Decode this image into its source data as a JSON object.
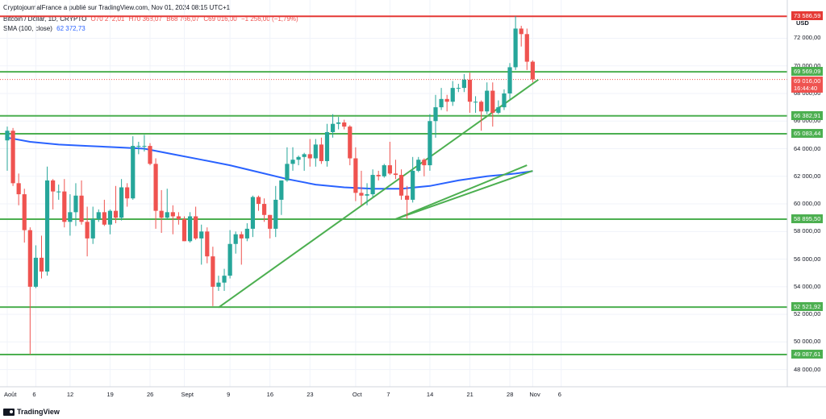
{
  "header": {
    "published": "CryptojournalFrance a publié sur TradingView.com, Nov 01, 2024 08:15 UTC+1",
    "symbol": "Bitcoin / Dollar, 1D, CRYPTO",
    "o": "O70 272,01",
    "h": "H70 368,07",
    "l": "B68 766,07",
    "c": "C69 016,00",
    "chg": "−1 256,00 (−1,79%)",
    "sma_label": "SMA (100, close)",
    "sma_value": "62 372,73"
  },
  "currency": "USD",
  "colors": {
    "up": "#26a69a",
    "down": "#ef5350",
    "sma": "#2962ff",
    "level": "#4caf50",
    "trend": "#4caf50",
    "top": "#e53935"
  },
  "footer": {
    "brand": "TradingView"
  },
  "price_labels": {
    "last_price": "69 016,00",
    "countdown": "16:44:40"
  },
  "chart_data": {
    "type": "candlestick",
    "title": "Bitcoin / Dollar, 1D, CRYPTO",
    "ylim": [
      47000,
      73800
    ],
    "y_ticks": [
      48000,
      50000,
      52000,
      54000,
      56000,
      58000,
      60000,
      62000,
      64000,
      66000,
      68000,
      70000,
      72000
    ],
    "y_tick_labels": [
      "48 000,00",
      "50 000,00",
      "52 000,00",
      "54 000,00",
      "56 000,00",
      "58 000,00",
      "60 000,00",
      "62 000,00",
      "64 000,00",
      "66 000,00",
      "68 000,00",
      "70 000,00",
      "72 000,00"
    ],
    "x_start": "2024-08-01",
    "x_ticks": [
      {
        "date": "2024-08-01",
        "label": "Août"
      },
      {
        "date": "2024-08-06",
        "label": "6"
      },
      {
        "date": "2024-08-12",
        "label": "12"
      },
      {
        "date": "2024-08-19",
        "label": "19"
      },
      {
        "date": "2024-08-26",
        "label": "26"
      },
      {
        "date": "2024-09-01",
        "label": "Sept"
      },
      {
        "date": "2024-09-09",
        "label": "9"
      },
      {
        "date": "2024-09-16",
        "label": "16"
      },
      {
        "date": "2024-09-23",
        "label": "23"
      },
      {
        "date": "2024-10-01",
        "label": "Oct"
      },
      {
        "date": "2024-10-07",
        "label": "7"
      },
      {
        "date": "2024-10-14",
        "label": "14"
      },
      {
        "date": "2024-10-21",
        "label": "21"
      },
      {
        "date": "2024-10-28",
        "label": "28"
      },
      {
        "date": "2024-11-01",
        "label": "Nov"
      },
      {
        "date": "2024-11-06",
        "label": "6"
      }
    ],
    "candles": [
      {
        "date": "2024-08-01",
        "o": 64600,
        "h": 65600,
        "l": 62400,
        "c": 65300
      },
      {
        "date": "2024-08-02",
        "o": 65300,
        "h": 65500,
        "l": 61300,
        "c": 61500
      },
      {
        "date": "2024-08-03",
        "o": 61500,
        "h": 62200,
        "l": 59900,
        "c": 60700
      },
      {
        "date": "2024-08-04",
        "o": 60700,
        "h": 61100,
        "l": 57200,
        "c": 58100
      },
      {
        "date": "2024-08-05",
        "o": 58100,
        "h": 58300,
        "l": 49100,
        "c": 54000
      },
      {
        "date": "2024-08-06",
        "o": 54000,
        "h": 57000,
        "l": 53900,
        "c": 56100
      },
      {
        "date": "2024-08-07",
        "o": 56100,
        "h": 57700,
        "l": 54600,
        "c": 55100
      },
      {
        "date": "2024-08-08",
        "o": 55100,
        "h": 62700,
        "l": 54800,
        "c": 61700
      },
      {
        "date": "2024-08-09",
        "o": 61700,
        "h": 61800,
        "l": 59600,
        "c": 60900
      },
      {
        "date": "2024-08-10",
        "o": 60900,
        "h": 61400,
        "l": 60300,
        "c": 60900
      },
      {
        "date": "2024-08-11",
        "o": 60900,
        "h": 61800,
        "l": 58300,
        "c": 58700
      },
      {
        "date": "2024-08-12",
        "o": 58700,
        "h": 60700,
        "l": 57700,
        "c": 59400
      },
      {
        "date": "2024-08-13",
        "o": 59400,
        "h": 61500,
        "l": 58400,
        "c": 60600
      },
      {
        "date": "2024-08-14",
        "o": 60600,
        "h": 61700,
        "l": 58500,
        "c": 58700
      },
      {
        "date": "2024-08-15",
        "o": 58700,
        "h": 59800,
        "l": 56200,
        "c": 57500
      },
      {
        "date": "2024-08-16",
        "o": 57500,
        "h": 59800,
        "l": 57100,
        "c": 58900
      },
      {
        "date": "2024-08-17",
        "o": 58900,
        "h": 59600,
        "l": 58700,
        "c": 59400
      },
      {
        "date": "2024-08-18",
        "o": 59400,
        "h": 60300,
        "l": 58400,
        "c": 58500
      },
      {
        "date": "2024-08-19",
        "o": 58500,
        "h": 59600,
        "l": 57800,
        "c": 59500
      },
      {
        "date": "2024-08-20",
        "o": 59500,
        "h": 61300,
        "l": 58600,
        "c": 59000
      },
      {
        "date": "2024-08-21",
        "o": 59000,
        "h": 61800,
        "l": 58800,
        "c": 61200
      },
      {
        "date": "2024-08-22",
        "o": 61200,
        "h": 61500,
        "l": 59800,
        "c": 60400
      },
      {
        "date": "2024-08-23",
        "o": 60400,
        "h": 64900,
        "l": 60300,
        "c": 64200
      },
      {
        "date": "2024-08-24",
        "o": 64200,
        "h": 64500,
        "l": 63600,
        "c": 64200
      },
      {
        "date": "2024-08-25",
        "o": 64200,
        "h": 65000,
        "l": 63800,
        "c": 64200
      },
      {
        "date": "2024-08-26",
        "o": 64200,
        "h": 64400,
        "l": 62800,
        "c": 62900
      },
      {
        "date": "2024-08-27",
        "o": 62900,
        "h": 63300,
        "l": 58200,
        "c": 59500
      },
      {
        "date": "2024-08-28",
        "o": 59500,
        "h": 61000,
        "l": 57900,
        "c": 59000
      },
      {
        "date": "2024-08-29",
        "o": 59000,
        "h": 61100,
        "l": 58900,
        "c": 59400
      },
      {
        "date": "2024-08-30",
        "o": 59400,
        "h": 59900,
        "l": 57800,
        "c": 59100
      },
      {
        "date": "2024-08-31",
        "o": 59100,
        "h": 59400,
        "l": 58500,
        "c": 58900
      },
      {
        "date": "2024-09-01",
        "o": 58900,
        "h": 59100,
        "l": 57300,
        "c": 57300
      },
      {
        "date": "2024-09-02",
        "o": 57300,
        "h": 59400,
        "l": 57200,
        "c": 59100
      },
      {
        "date": "2024-09-03",
        "o": 59100,
        "h": 59800,
        "l": 57400,
        "c": 57500
      },
      {
        "date": "2024-09-04",
        "o": 57500,
        "h": 58500,
        "l": 55600,
        "c": 58000
      },
      {
        "date": "2024-09-05",
        "o": 58000,
        "h": 58300,
        "l": 55700,
        "c": 56200
      },
      {
        "date": "2024-09-06",
        "o": 56200,
        "h": 56900,
        "l": 52600,
        "c": 54000
      },
      {
        "date": "2024-09-07",
        "o": 54000,
        "h": 54800,
        "l": 53700,
        "c": 54300
      },
      {
        "date": "2024-09-08",
        "o": 54300,
        "h": 55300,
        "l": 53700,
        "c": 54800
      },
      {
        "date": "2024-09-09",
        "o": 54800,
        "h": 58100,
        "l": 54600,
        "c": 57100
      },
      {
        "date": "2024-09-10",
        "o": 57100,
        "h": 58000,
        "l": 56400,
        "c": 57800
      },
      {
        "date": "2024-09-11",
        "o": 57800,
        "h": 58000,
        "l": 55600,
        "c": 57500
      },
      {
        "date": "2024-09-12",
        "o": 57500,
        "h": 58600,
        "l": 57300,
        "c": 58200
      },
      {
        "date": "2024-09-13",
        "o": 58200,
        "h": 60600,
        "l": 57600,
        "c": 60500
      },
      {
        "date": "2024-09-14",
        "o": 60500,
        "h": 60600,
        "l": 59500,
        "c": 60000
      },
      {
        "date": "2024-09-15",
        "o": 60000,
        "h": 60400,
        "l": 58700,
        "c": 59200
      },
      {
        "date": "2024-09-16",
        "o": 59200,
        "h": 59200,
        "l": 57500,
        "c": 58200
      },
      {
        "date": "2024-09-17",
        "o": 58200,
        "h": 61300,
        "l": 57600,
        "c": 60300
      },
      {
        "date": "2024-09-18",
        "o": 60300,
        "h": 61700,
        "l": 59200,
        "c": 61700
      },
      {
        "date": "2024-09-19",
        "o": 61700,
        "h": 64100,
        "l": 61600,
        "c": 62900
      },
      {
        "date": "2024-09-20",
        "o": 62900,
        "h": 64100,
        "l": 62400,
        "c": 63200
      },
      {
        "date": "2024-09-21",
        "o": 63200,
        "h": 63500,
        "l": 62800,
        "c": 63400
      },
      {
        "date": "2024-09-22",
        "o": 63400,
        "h": 63700,
        "l": 62400,
        "c": 63600
      },
      {
        "date": "2024-09-23",
        "o": 63600,
        "h": 64700,
        "l": 62700,
        "c": 63300
      },
      {
        "date": "2024-09-24",
        "o": 63300,
        "h": 64700,
        "l": 62700,
        "c": 64300
      },
      {
        "date": "2024-09-25",
        "o": 64300,
        "h": 64800,
        "l": 62900,
        "c": 63100
      },
      {
        "date": "2024-09-26",
        "o": 63100,
        "h": 65800,
        "l": 62700,
        "c": 65200
      },
      {
        "date": "2024-09-27",
        "o": 65200,
        "h": 66500,
        "l": 64800,
        "c": 65800
      },
      {
        "date": "2024-09-28",
        "o": 65800,
        "h": 66300,
        "l": 65400,
        "c": 65900
      },
      {
        "date": "2024-09-29",
        "o": 65900,
        "h": 66100,
        "l": 65400,
        "c": 65600
      },
      {
        "date": "2024-09-30",
        "o": 65600,
        "h": 65700,
        "l": 62800,
        "c": 63300
      },
      {
        "date": "2024-10-01",
        "o": 63300,
        "h": 64100,
        "l": 60200,
        "c": 60800
      },
      {
        "date": "2024-10-02",
        "o": 60800,
        "h": 62400,
        "l": 59900,
        "c": 60600
      },
      {
        "date": "2024-10-03",
        "o": 60600,
        "h": 61500,
        "l": 59900,
        "c": 60700
      },
      {
        "date": "2024-10-04",
        "o": 60700,
        "h": 62500,
        "l": 60500,
        "c": 62100
      },
      {
        "date": "2024-10-05",
        "o": 62100,
        "h": 62400,
        "l": 61700,
        "c": 62000
      },
      {
        "date": "2024-10-06",
        "o": 62000,
        "h": 62900,
        "l": 61900,
        "c": 62800
      },
      {
        "date": "2024-10-07",
        "o": 62800,
        "h": 64500,
        "l": 62100,
        "c": 62200
      },
      {
        "date": "2024-10-08",
        "o": 62200,
        "h": 63200,
        "l": 61800,
        "c": 62100
      },
      {
        "date": "2024-10-09",
        "o": 62100,
        "h": 62500,
        "l": 60300,
        "c": 60600
      },
      {
        "date": "2024-10-10",
        "o": 60600,
        "h": 61300,
        "l": 58900,
        "c": 60300
      },
      {
        "date": "2024-10-11",
        "o": 60300,
        "h": 63400,
        "l": 60100,
        "c": 62400
      },
      {
        "date": "2024-10-12",
        "o": 62400,
        "h": 63400,
        "l": 62300,
        "c": 63200
      },
      {
        "date": "2024-10-13",
        "o": 63200,
        "h": 63300,
        "l": 62000,
        "c": 62800
      },
      {
        "date": "2024-10-14",
        "o": 62800,
        "h": 66500,
        "l": 62400,
        "c": 66000
      },
      {
        "date": "2024-10-15",
        "o": 66000,
        "h": 67900,
        "l": 64800,
        "c": 67000
      },
      {
        "date": "2024-10-16",
        "o": 67000,
        "h": 68400,
        "l": 66800,
        "c": 67600
      },
      {
        "date": "2024-10-17",
        "o": 67600,
        "h": 67900,
        "l": 66700,
        "c": 67400
      },
      {
        "date": "2024-10-18",
        "o": 67400,
        "h": 68900,
        "l": 67100,
        "c": 68400
      },
      {
        "date": "2024-10-19",
        "o": 68400,
        "h": 68700,
        "l": 68100,
        "c": 68400
      },
      {
        "date": "2024-10-20",
        "o": 68400,
        "h": 69400,
        "l": 68100,
        "c": 69000
      },
      {
        "date": "2024-10-21",
        "o": 69000,
        "h": 69500,
        "l": 66600,
        "c": 67400
      },
      {
        "date": "2024-10-22",
        "o": 67400,
        "h": 67800,
        "l": 66600,
        "c": 67400
      },
      {
        "date": "2024-10-23",
        "o": 67400,
        "h": 67500,
        "l": 65300,
        "c": 66700
      },
      {
        "date": "2024-10-24",
        "o": 66700,
        "h": 68800,
        "l": 66500,
        "c": 68200
      },
      {
        "date": "2024-10-25",
        "o": 68200,
        "h": 68800,
        "l": 65600,
        "c": 66600
      },
      {
        "date": "2024-10-26",
        "o": 66600,
        "h": 67500,
        "l": 66500,
        "c": 67000
      },
      {
        "date": "2024-10-27",
        "o": 67000,
        "h": 68300,
        "l": 66800,
        "c": 68000
      },
      {
        "date": "2024-10-28",
        "o": 68000,
        "h": 70200,
        "l": 67600,
        "c": 69900
      },
      {
        "date": "2024-10-29",
        "o": 69900,
        "h": 73600,
        "l": 69700,
        "c": 72700
      },
      {
        "date": "2024-10-30",
        "o": 72700,
        "h": 72900,
        "l": 71400,
        "c": 72300
      },
      {
        "date": "2024-10-31",
        "o": 72300,
        "h": 72700,
        "l": 69700,
        "c": 70300
      },
      {
        "date": "2024-11-01",
        "o": 70300,
        "h": 70400,
        "l": 68800,
        "c": 69016
      }
    ],
    "sma_points": [
      {
        "date": "2024-08-01",
        "v": 64800
      },
      {
        "date": "2024-08-05",
        "v": 64500
      },
      {
        "date": "2024-08-10",
        "v": 64300
      },
      {
        "date": "2024-08-15",
        "v": 64200
      },
      {
        "date": "2024-08-20",
        "v": 64100
      },
      {
        "date": "2024-08-25",
        "v": 64000
      },
      {
        "date": "2024-08-30",
        "v": 63600
      },
      {
        "date": "2024-09-04",
        "v": 63200
      },
      {
        "date": "2024-09-09",
        "v": 62800
      },
      {
        "date": "2024-09-14",
        "v": 62300
      },
      {
        "date": "2024-09-19",
        "v": 61800
      },
      {
        "date": "2024-09-24",
        "v": 61400
      },
      {
        "date": "2024-09-29",
        "v": 61200
      },
      {
        "date": "2024-10-04",
        "v": 61100
      },
      {
        "date": "2024-10-09",
        "v": 61100
      },
      {
        "date": "2024-10-14",
        "v": 61300
      },
      {
        "date": "2024-10-19",
        "v": 61700
      },
      {
        "date": "2024-10-24",
        "v": 62000
      },
      {
        "date": "2024-10-29",
        "v": 62200
      },
      {
        "date": "2024-11-01",
        "v": 62373
      }
    ],
    "levels": [
      {
        "value": 73586.59,
        "label": "73 586,59",
        "kind": "top"
      },
      {
        "value": 69569.09,
        "label": "69 569,09",
        "kind": "level"
      },
      {
        "value": 66382.91,
        "label": "66 382,91",
        "kind": "level"
      },
      {
        "value": 65083.44,
        "label": "65 083,44",
        "kind": "level"
      },
      {
        "value": 58895.5,
        "label": "58 895,50",
        "kind": "level"
      },
      {
        "value": 52521.92,
        "label": "52 521,92",
        "kind": "level"
      },
      {
        "value": 49087.61,
        "label": "49 087,61",
        "kind": "level"
      }
    ],
    "trendlines": [
      {
        "from": {
          "date": "2024-09-07",
          "v": 52500
        },
        "to": {
          "date": "2024-11-02",
          "v": 69000
        }
      },
      {
        "from": {
          "date": "2024-10-08",
          "v": 58900
        },
        "to": {
          "date": "2024-10-31",
          "v": 62800
        }
      },
      {
        "from": {
          "date": "2024-10-08",
          "v": 58900
        },
        "to": {
          "date": "2024-11-01",
          "v": 62400
        }
      }
    ],
    "last_price": 69016
  }
}
